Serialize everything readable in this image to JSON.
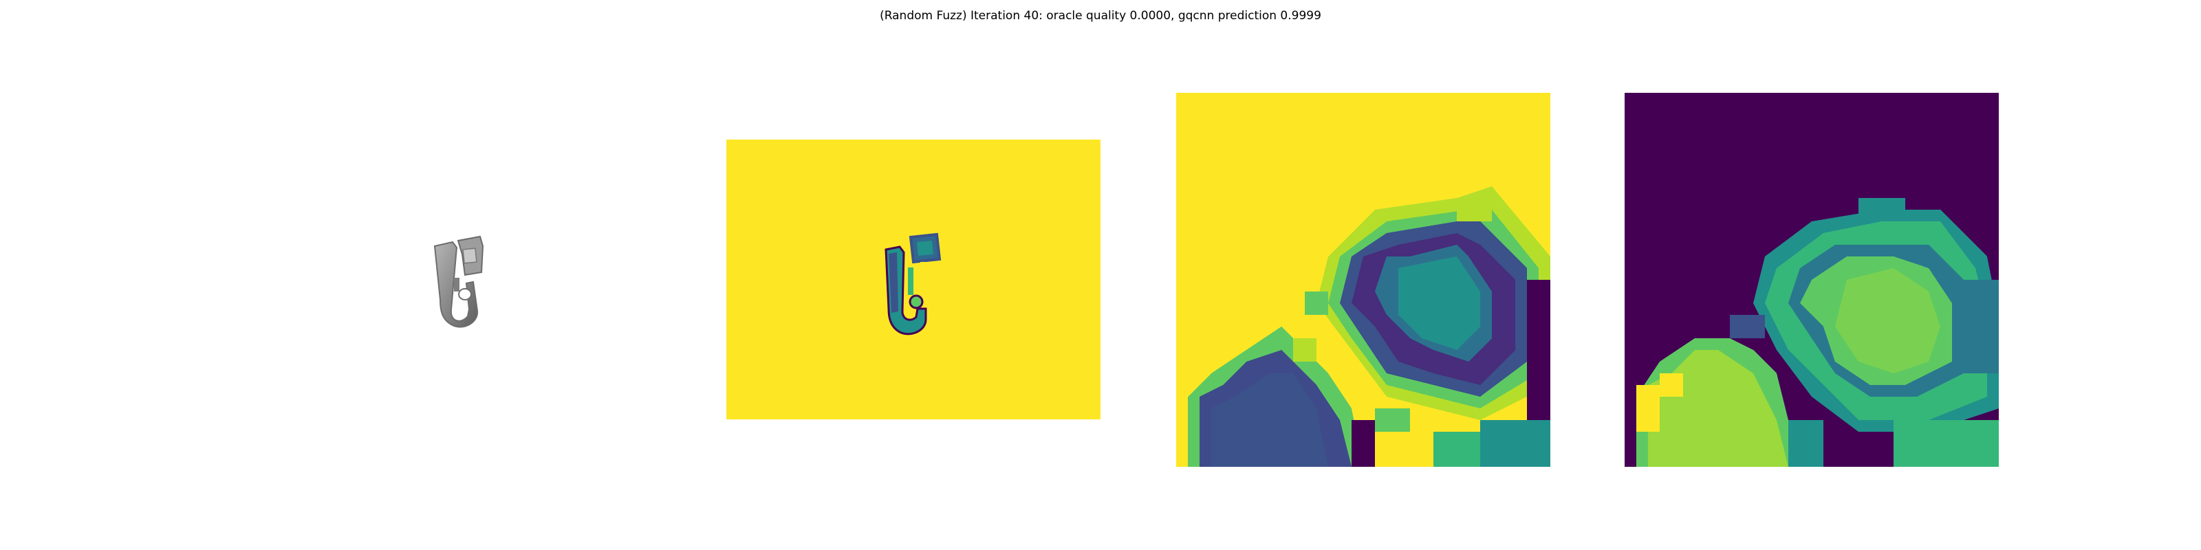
{
  "figure": {
    "title": "(Random Fuzz) Iteration 40: oracle quality 0.0000, gqcnn prediction 0.9999"
  },
  "colors": {
    "viridis_yellow": "#fde725",
    "viridis_purple": "#440154",
    "viridis_dark_blue": "#3b528b",
    "viridis_teal": "#21918c",
    "viridis_green": "#5ec962",
    "object_gray": "#8c8c8c"
  },
  "panels": [
    {
      "name": "rendered-object",
      "content": "grayscale render of object"
    },
    {
      "name": "depth-image",
      "colormap": "viridis"
    },
    {
      "name": "cropped-depth-image",
      "colormap": "viridis"
    },
    {
      "name": "cropped-depth-difference",
      "colormap": "viridis"
    }
  ]
}
